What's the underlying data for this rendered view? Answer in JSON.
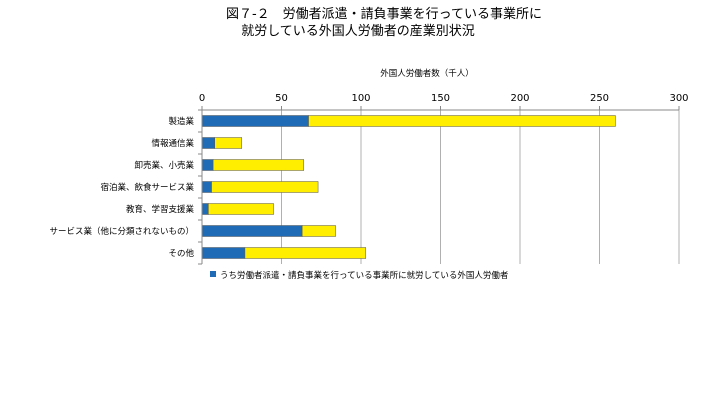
{
  "chart_data": {
    "type": "bar",
    "orientation": "horizontal",
    "stacked": true,
    "title_lines": [
      "図７-２　労働者派遣・請負事業を行っている事業所に",
      "就労している外国人労働者の産業別状況"
    ],
    "xlabel": "外国人労働者数（千人）",
    "ylabel": "",
    "xlim": [
      0,
      300
    ],
    "xticks": [
      "0",
      "50",
      "100",
      "150",
      "200",
      "250",
      "300"
    ],
    "xtick_values": [
      0,
      50,
      100,
      150,
      200,
      250,
      300
    ],
    "grid": true,
    "legend_position": "bottom-left",
    "categories": [
      "製造業",
      "情報通信業",
      "卸売業、小売業",
      "宿泊業、飲食サービス業",
      "教育、学習支援業",
      "サービス業（他に分類されないもの）",
      "その他"
    ],
    "series": [
      {
        "name": "うち労働者派遣・請負事業を行っている事業所に就労している外国人労働者",
        "color": "#1f6bb5",
        "values": [
          67,
          8,
          7,
          6,
          4,
          63,
          27
        ]
      },
      {
        "name": "",
        "color": "#ffee00",
        "values": [
          193,
          17,
          57,
          67,
          41,
          21,
          76
        ]
      }
    ]
  }
}
